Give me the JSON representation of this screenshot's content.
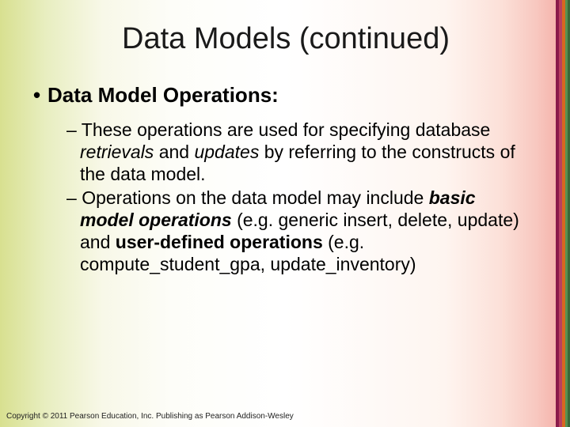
{
  "background": {
    "gradient_stops": [
      "#d8e090",
      "#e8eec0",
      "#f8f8e8",
      "#fdfdf8",
      "#ffffff",
      "#fef5f0",
      "#fce0d8",
      "#f8c8c0",
      "#f5b8b0",
      "#f0a8a0"
    ],
    "stripe_colors": [
      "#8a1a4a",
      "#b84060",
      "#d86820",
      "#5a9050",
      "#3a6838"
    ]
  },
  "title": {
    "text": "Data Models (continued)",
    "fontsize": 38,
    "color": "#1a1a1a"
  },
  "bullets": {
    "level1": {
      "marker": "•",
      "text": "Data Model Operations:",
      "fontsize": 26,
      "fontweight": "bold"
    },
    "level2": [
      {
        "marker": "–",
        "runs": [
          {
            "text": "These operations are used for specifying database ",
            "style": "normal"
          },
          {
            "text": "retrievals",
            "style": "italic"
          },
          {
            "text": " and ",
            "style": "normal"
          },
          {
            "text": "updates",
            "style": "italic"
          },
          {
            "text": " by referring to the constructs of the data model.",
            "style": "normal"
          }
        ]
      },
      {
        "marker": "–",
        "runs": [
          {
            "text": "Operations on the data model may include ",
            "style": "normal"
          },
          {
            "text": "basic model operations",
            "style": "bolditalic"
          },
          {
            "text": " (e.g. generic insert, delete, update) and ",
            "style": "normal"
          },
          {
            "text": "user-defined operations",
            "style": "bold"
          },
          {
            "text": " (e.g. compute_student_gpa, update_inventory)",
            "style": "normal"
          }
        ]
      }
    ],
    "level2_fontsize": 23
  },
  "footer": {
    "text": "Copyright © 2011 Pearson Education, Inc. Publishing as Pearson Addison-Wesley",
    "fontsize": 10
  }
}
